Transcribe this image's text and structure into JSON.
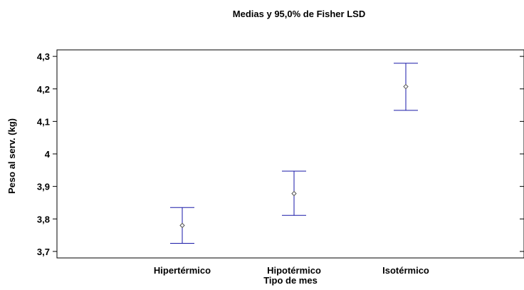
{
  "chart_data": {
    "type": "errorbar",
    "title": "Medias y 95,0% de Fisher LSD",
    "xlabel": "Tipo de mes",
    "ylabel": "Peso al serv. (kg)",
    "categories": [
      "Hipertérmico",
      "Hipotérmico",
      "Isotérmico"
    ],
    "means": [
      3.78,
      3.878,
      4.207
    ],
    "lower": [
      3.725,
      3.811,
      4.134
    ],
    "upper": [
      3.835,
      3.947,
      4.279
    ],
    "ylim": [
      3.68,
      4.32
    ],
    "yticks": [
      3.7,
      3.8,
      3.9,
      4.0,
      4.1,
      4.2,
      4.3
    ],
    "ytick_labels": [
      "3,7",
      "3,8",
      "3,9",
      "4",
      "4,1",
      "4,2",
      "4,3"
    ],
    "grid": false,
    "legend": "none",
    "colors": {
      "errorbar": "#1a1aa8",
      "marker": "#555555",
      "axis": "#000000"
    }
  }
}
